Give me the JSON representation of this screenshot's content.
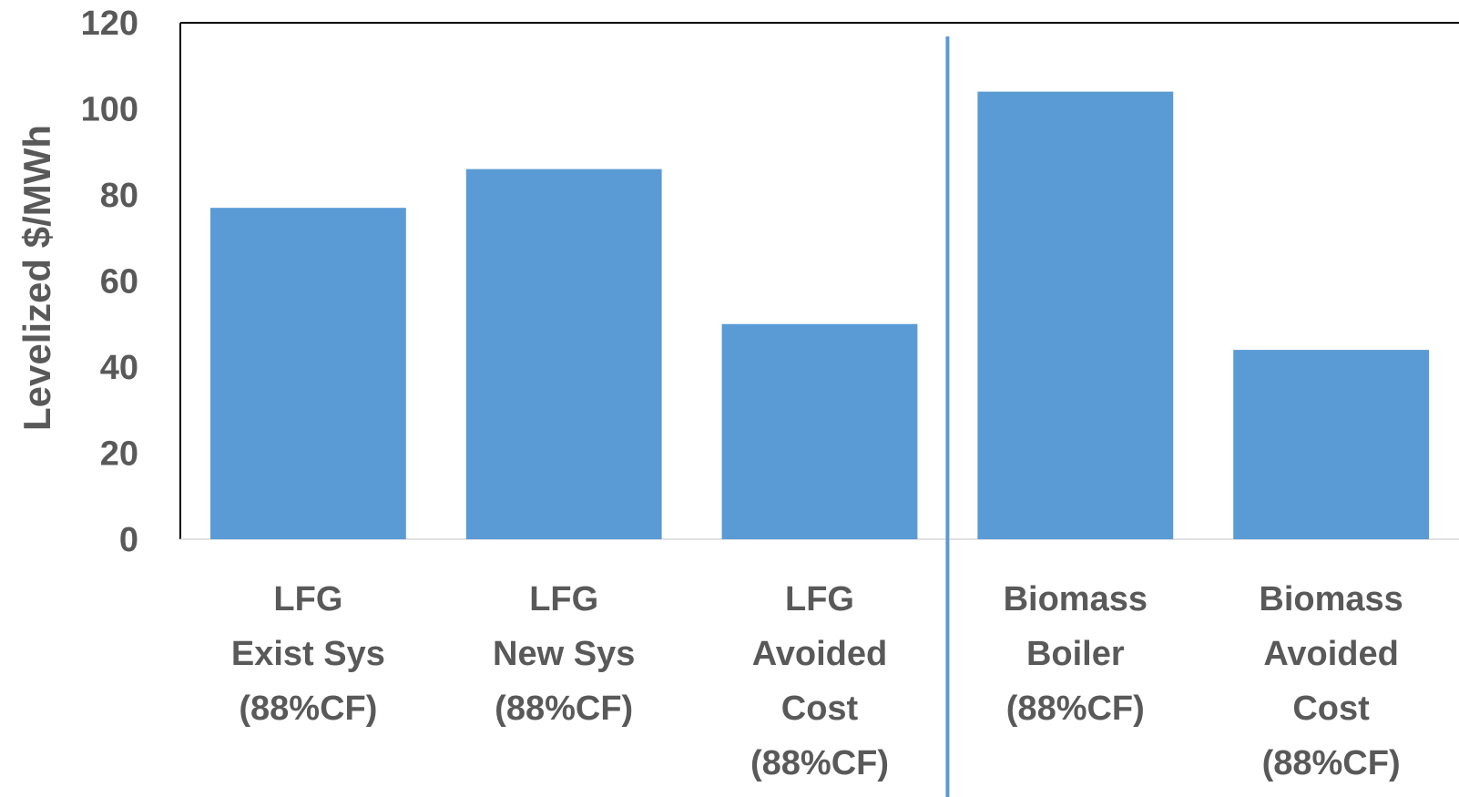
{
  "chart_data": {
    "type": "bar",
    "title": "",
    "xlabel": "",
    "ylabel": "Levelized $/MWh",
    "ylim": [
      0,
      120
    ],
    "yticks": [
      0,
      20,
      40,
      60,
      80,
      100,
      120
    ],
    "grid": false,
    "categories": [
      [
        "LFG",
        "Exist Sys",
        "(88%CF)"
      ],
      [
        "LFG",
        "New Sys",
        "(88%CF)"
      ],
      [
        "LFG",
        "Avoided",
        "Cost",
        "(88%CF)"
      ],
      [
        "Biomass",
        "Boiler",
        "(88%CF)"
      ],
      [
        "Biomass",
        "Avoided",
        "Cost",
        "(88%CF)"
      ]
    ],
    "values": [
      77,
      86,
      50,
      104,
      44
    ],
    "separator_after_index": 2,
    "colors": {
      "bar": "#5B9BD5",
      "separator": "#5B9BD5",
      "axis": "#000000",
      "text": "#595959"
    }
  }
}
